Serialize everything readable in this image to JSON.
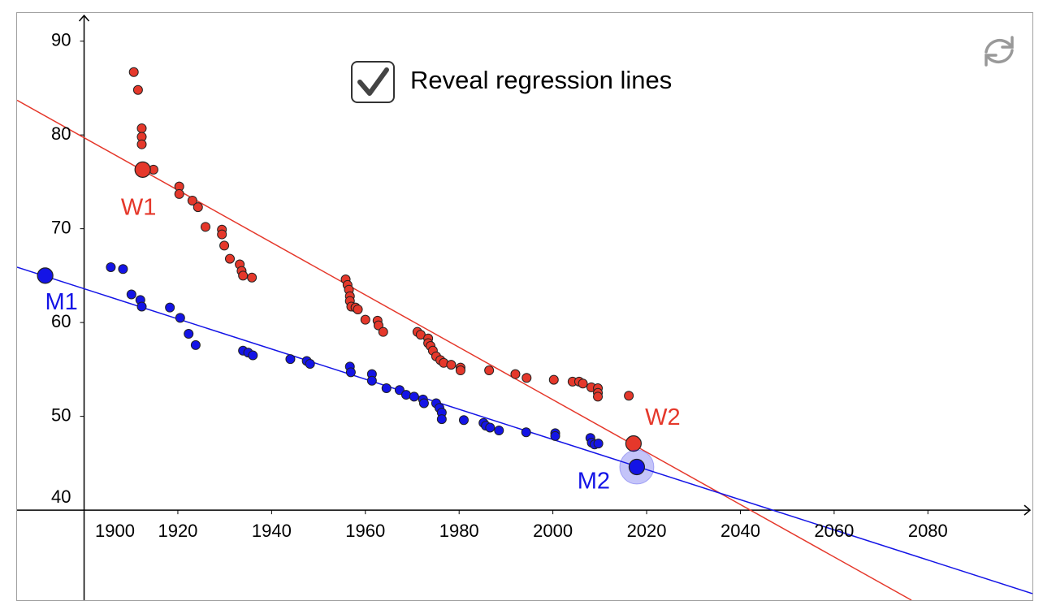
{
  "chart_data": {
    "type": "scatter",
    "checkbox_label": "Reveal regression lines",
    "checkbox_checked": true,
    "xlim": [
      1885.7,
      2102.3
    ],
    "ylim": [
      30.4,
      93.0
    ],
    "xticks": [
      1900,
      1920,
      1940,
      1960,
      1980,
      2000,
      2020,
      2040,
      2060,
      2080
    ],
    "yticks": [
      40,
      50,
      60,
      70,
      80,
      90
    ],
    "series": [
      {
        "color": "#e5382b",
        "x": [
          1910.6,
          1911.5,
          1912.3,
          1912.3,
          1912.3,
          1914.8,
          1920.3,
          1920.3,
          1923.1,
          1924.3,
          1925.9,
          1929.4,
          1929.4,
          1929.9,
          1931.1,
          1933.2,
          1933.6,
          1933.9,
          1935.8,
          1955.8,
          1956.2,
          1956.5,
          1956.7,
          1956.7,
          1957.0,
          1957.9,
          1958.4,
          1960.0,
          1962.6,
          1962.8,
          1963.8,
          1971.1,
          1971.8,
          1973.4,
          1973.4,
          1973.9,
          1974.4,
          1975.1,
          1976.0,
          1976.7,
          1978.3,
          1980.3,
          1980.3,
          1986.4,
          1992.0,
          1994.4,
          2000.2,
          2004.2,
          2005.6,
          2006.4,
          2008.2,
          2009.6,
          2009.6,
          2009.6,
          2016.2
        ],
        "values": [
          86.7,
          84.8,
          80.7,
          79.8,
          79.0,
          76.3,
          74.5,
          73.7,
          73.0,
          72.3,
          70.2,
          69.9,
          69.4,
          68.2,
          66.8,
          66.2,
          65.5,
          65.0,
          64.8,
          64.6,
          64.0,
          63.5,
          62.8,
          62.3,
          61.7,
          61.6,
          61.4,
          60.3,
          60.2,
          59.7,
          59.0,
          59.0,
          58.7,
          58.3,
          57.8,
          57.5,
          57.0,
          56.4,
          56.0,
          55.7,
          55.5,
          55.2,
          54.9,
          54.9,
          54.5,
          54.1,
          53.9,
          53.7,
          53.7,
          53.5,
          53.1,
          53.0,
          52.5,
          52.1,
          52.2
        ]
      },
      {
        "color": "#1414e6",
        "x": [
          1905.7,
          1908.3,
          1910.1,
          1912.0,
          1912.3,
          1918.3,
          1920.5,
          1922.3,
          1923.8,
          1933.9,
          1935.0,
          1936.0,
          1944.0,
          1947.5,
          1948.2,
          1956.7,
          1956.9,
          1961.4,
          1961.4,
          1964.5,
          1967.3,
          1968.7,
          1970.4,
          1972.3,
          1972.5,
          1975.1,
          1975.8,
          1976.3,
          1976.3,
          1981.0,
          1985.2,
          1985.7,
          1986.6,
          1988.5,
          1994.3,
          2000.5,
          2000.5,
          2008.0,
          2008.3,
          2008.9,
          2009.7
        ],
        "values": [
          65.9,
          65.7,
          63.0,
          62.4,
          61.7,
          61.6,
          60.5,
          58.8,
          57.6,
          57.0,
          56.8,
          56.5,
          56.1,
          55.9,
          55.6,
          55.3,
          54.7,
          54.5,
          53.8,
          53.0,
          52.8,
          52.3,
          52.1,
          51.8,
          51.4,
          51.4,
          50.9,
          50.4,
          49.7,
          49.6,
          49.3,
          49.0,
          48.8,
          48.5,
          48.3,
          48.2,
          47.9,
          47.7,
          47.2,
          47.0,
          47.1
        ]
      }
    ],
    "regression_lines": [
      {
        "color": "#e5382b",
        "x": [
          1885.7,
          2076.5
        ],
        "y": [
          83.7,
          30.4
        ]
      },
      {
        "color": "#1414e6",
        "x": [
          1885.7,
          2102.3
        ],
        "y": [
          65.9,
          31.1
        ]
      }
    ],
    "labeled_points": [
      {
        "label": "W1",
        "color": "#e5382b",
        "x": 1912.5,
        "y": 76.3
      },
      {
        "label": "W2",
        "color": "#e5382b",
        "x": 2017.2,
        "y": 47.1
      },
      {
        "label": "M1",
        "color": "#1414e6",
        "x": 1891.7,
        "y": 65.0
      },
      {
        "label": "M2",
        "color": "#1414e6",
        "x": 2017.9,
        "y": 44.6
      }
    ]
  }
}
